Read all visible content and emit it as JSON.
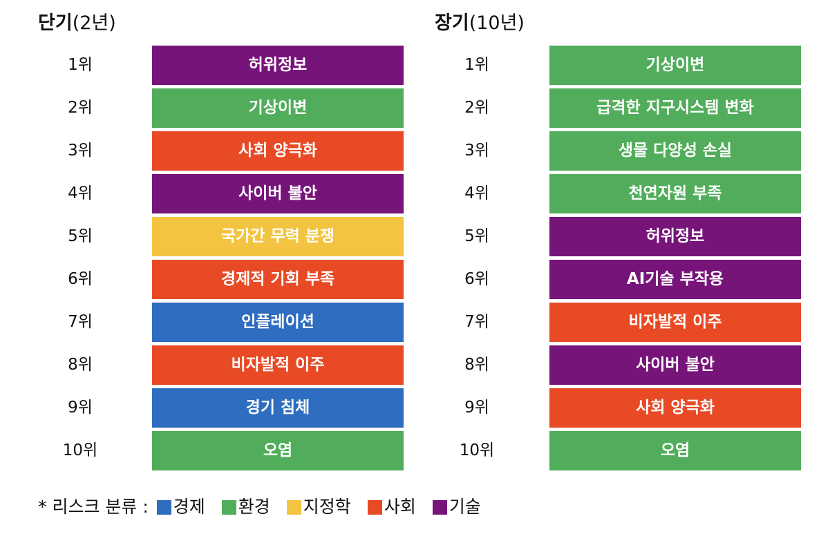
{
  "colors": {
    "economy": "#2e6dbf",
    "environment": "#51ad5b",
    "geopolitics": "#f3c441",
    "society": "#e84a26",
    "technology": "#77147a"
  },
  "short_term": {
    "title_bold": "단기",
    "title_light": "(2년)",
    "items": [
      {
        "rank": "1위",
        "label": "허위정보",
        "category": "technology"
      },
      {
        "rank": "2위",
        "label": "기상이변",
        "category": "environment"
      },
      {
        "rank": "3위",
        "label": "사회 양극화",
        "category": "society"
      },
      {
        "rank": "4위",
        "label": "사이버 불안",
        "category": "technology"
      },
      {
        "rank": "5위",
        "label": "국가간 무력 분쟁",
        "category": "geopolitics"
      },
      {
        "rank": "6위",
        "label": "경제적 기회 부족",
        "category": "society"
      },
      {
        "rank": "7위",
        "label": "인플레이션",
        "category": "economy"
      },
      {
        "rank": "8위",
        "label": "비자발적 이주",
        "category": "society"
      },
      {
        "rank": "9위",
        "label": "경기 침체",
        "category": "economy"
      },
      {
        "rank": "10위",
        "label": "오염",
        "category": "environment"
      }
    ]
  },
  "long_term": {
    "title_bold": "장기",
    "title_light": "(10년)",
    "items": [
      {
        "rank": "1위",
        "label": "기상이변",
        "category": "environment"
      },
      {
        "rank": "2위",
        "label": "급격한 지구시스템 변화",
        "category": "environment"
      },
      {
        "rank": "3위",
        "label": "생물 다양성 손실",
        "category": "environment"
      },
      {
        "rank": "4위",
        "label": "천연자원 부족",
        "category": "environment"
      },
      {
        "rank": "5위",
        "label": "허위정보",
        "category": "technology"
      },
      {
        "rank": "6위",
        "label": "AI기술 부작용",
        "category": "technology"
      },
      {
        "rank": "7위",
        "label": "비자발적 이주",
        "category": "society"
      },
      {
        "rank": "8위",
        "label": "사이버 불안",
        "category": "technology"
      },
      {
        "rank": "9위",
        "label": "사회 양극화",
        "category": "society"
      },
      {
        "rank": "10위",
        "label": "오염",
        "category": "environment"
      }
    ]
  },
  "legend": {
    "prefix": "* 리스크 분류 :",
    "items": [
      {
        "label": "경제",
        "category": "economy"
      },
      {
        "label": "환경",
        "category": "environment"
      },
      {
        "label": "지정학",
        "category": "geopolitics"
      },
      {
        "label": "사회",
        "category": "society"
      },
      {
        "label": "기술",
        "category": "technology"
      }
    ]
  }
}
